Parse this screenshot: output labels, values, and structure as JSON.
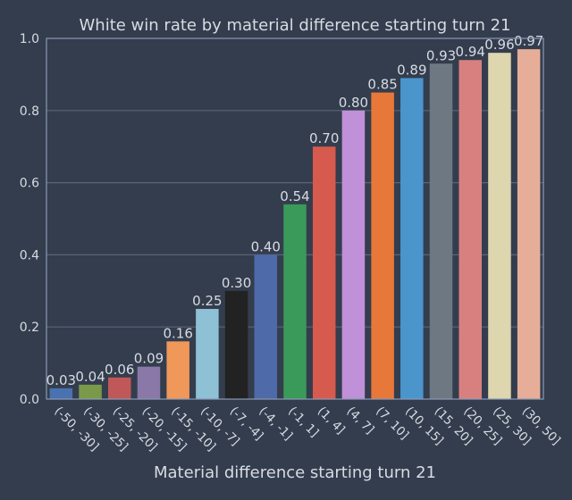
{
  "page": {
    "background": "#343d4d"
  },
  "chart_data": {
    "type": "bar",
    "title": "White win rate by material difference starting turn 21",
    "xlabel": "Material difference starting turn 21",
    "ylabel": "",
    "ylim": [
      0,
      1.0
    ],
    "yticks": [
      "0.0",
      "0.2",
      "0.4",
      "0.6",
      "0.8",
      "1.0"
    ],
    "grid": true,
    "categories": [
      "(-50, -30]",
      "(-30, -25]",
      "(-25, -20]",
      "(-20, -15]",
      "(-15, -10]",
      "(-10, -7]",
      "(-7, -4]",
      "(-4, -1]",
      "(-1, 1]",
      "(1, 4]",
      "(4, 7]",
      "(7, 10]",
      "(10, 15]",
      "(15, 20]",
      "(20, 25]",
      "(25, 30]",
      "(30, 50]"
    ],
    "values": [
      0.03,
      0.04,
      0.06,
      0.09,
      0.16,
      0.25,
      0.3,
      0.4,
      0.54,
      0.7,
      0.8,
      0.85,
      0.89,
      0.93,
      0.94,
      0.96,
      0.97
    ],
    "value_labels": [
      "0.03",
      "0.04",
      "0.06",
      "0.09",
      "0.16",
      "0.25",
      "0.30",
      "0.40",
      "0.54",
      "0.70",
      "0.80",
      "0.85",
      "0.89",
      "0.93",
      "0.94",
      "0.96",
      "0.97"
    ],
    "colors": [
      "#4a72b0",
      "#7a9a4a",
      "#c0585a",
      "#8a78a8",
      "#f0975a",
      "#8ec0d6",
      "#222222",
      "#4e6aa8",
      "#3a9a5a",
      "#d65a4e",
      "#c090d8",
      "#e8783a",
      "#4a96cc",
      "#6e7882",
      "#d88080",
      "#ddd6ae",
      "#e6ae98"
    ],
    "styles": {
      "axis_color": "#8c9ab6",
      "grid_color": "#5a6578",
      "text_color": "#d7dbe3"
    }
  }
}
